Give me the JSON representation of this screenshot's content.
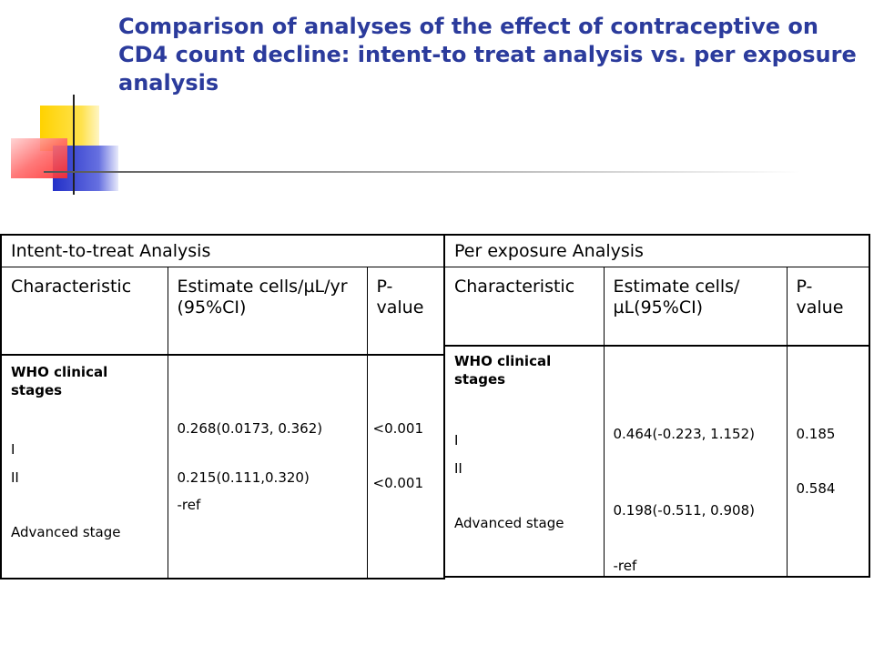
{
  "title": "Comparison of analyses of the effect of contraceptive on CD4 count decline: intent-to treat analysis vs. per exposure analysis",
  "itt": {
    "header": "Intent-to-treat Analysis",
    "col_characteristic": "Characteristic",
    "col_estimate": "Estimate cells/µL/yr (95%CI)",
    "col_pvalue": "P- value",
    "group_label": "WHO clinical stages",
    "rows": [
      {
        "label": "I",
        "estimate": "0.268(0.0173, 0.362)",
        "pvalue": "<0.001"
      },
      {
        "label": "II",
        "estimate": "0.215(0.111,0.320)",
        "pvalue": "<0.001"
      },
      {
        "label": "Advanced stage",
        "estimate": "-ref",
        "pvalue": ""
      }
    ]
  },
  "pe": {
    "header": "Per exposure Analysis",
    "col_characteristic": "Characteristic",
    "col_estimate": "Estimate cells/µL(95%CI)",
    "col_pvalue": "P- value",
    "group_label": "WHO clinical stages",
    "rows": [
      {
        "label": "I",
        "estimate": "0.464(-0.223, 1.152)",
        "pvalue": "0.185"
      },
      {
        "label": "II",
        "estimate": "0.198(-0.511, 0.908)",
        "pvalue": "0.584"
      },
      {
        "label": "Advanced stage",
        "estimate": "-ref",
        "pvalue": ""
      }
    ]
  },
  "colors": {
    "title": "#2b3b9c",
    "deco_yellow": "#ffd200",
    "deco_blue": "#2330c8",
    "deco_red": "#ff2a2a"
  }
}
